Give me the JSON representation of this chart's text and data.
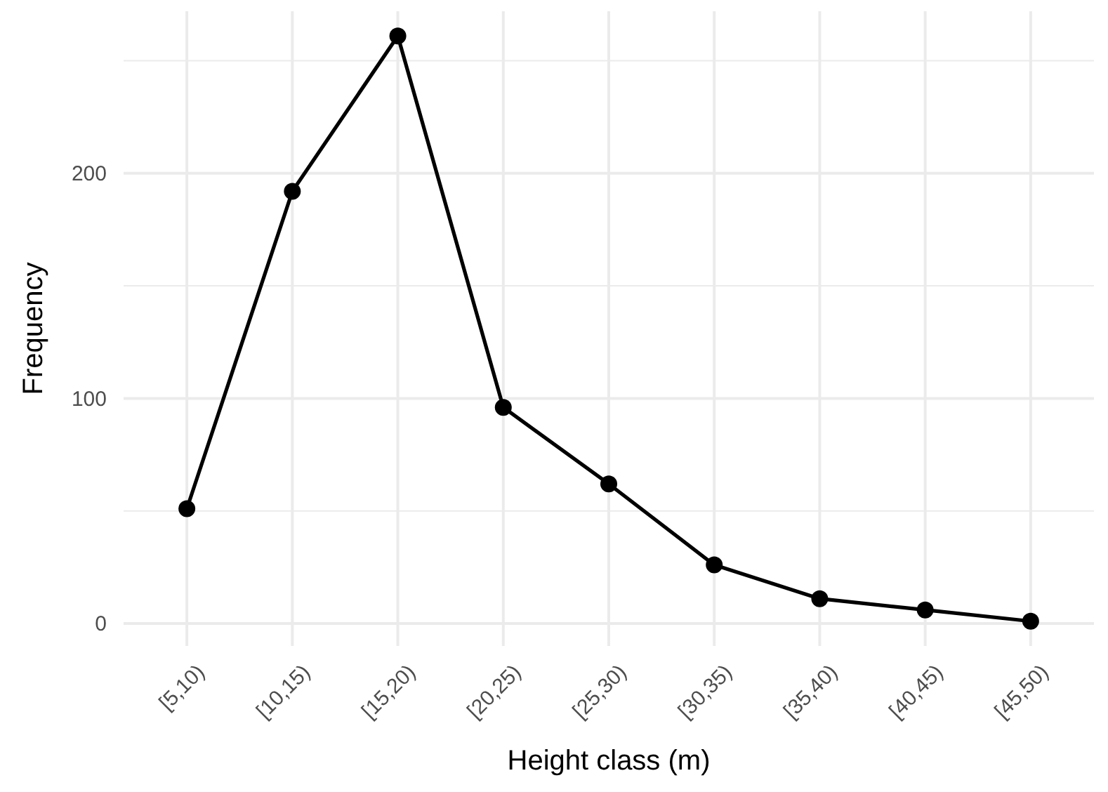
{
  "chart_data": {
    "type": "line",
    "xlabel": "Height class (m)",
    "ylabel": "Frequency",
    "categories": [
      "[5,10)",
      "[10,15)",
      "[15,20)",
      "[20,25)",
      "[25,30)",
      "[30,35)",
      "[35,40)",
      "[40,45)",
      "[45,50)"
    ],
    "series": [
      {
        "color": "#000000",
        "values": [
          51,
          192,
          261,
          96,
          62,
          26,
          11,
          6,
          1
        ]
      }
    ],
    "ylim": [
      -10,
      272
    ],
    "yticks": [
      0,
      {
        "value": 50,
        "label": null
      },
      100,
      {
        "value": 150,
        "label": null
      },
      200,
      {
        "value": 250,
        "label": null
      }
    ],
    "grid": true,
    "marker": "circle",
    "line_style": "solid"
  }
}
